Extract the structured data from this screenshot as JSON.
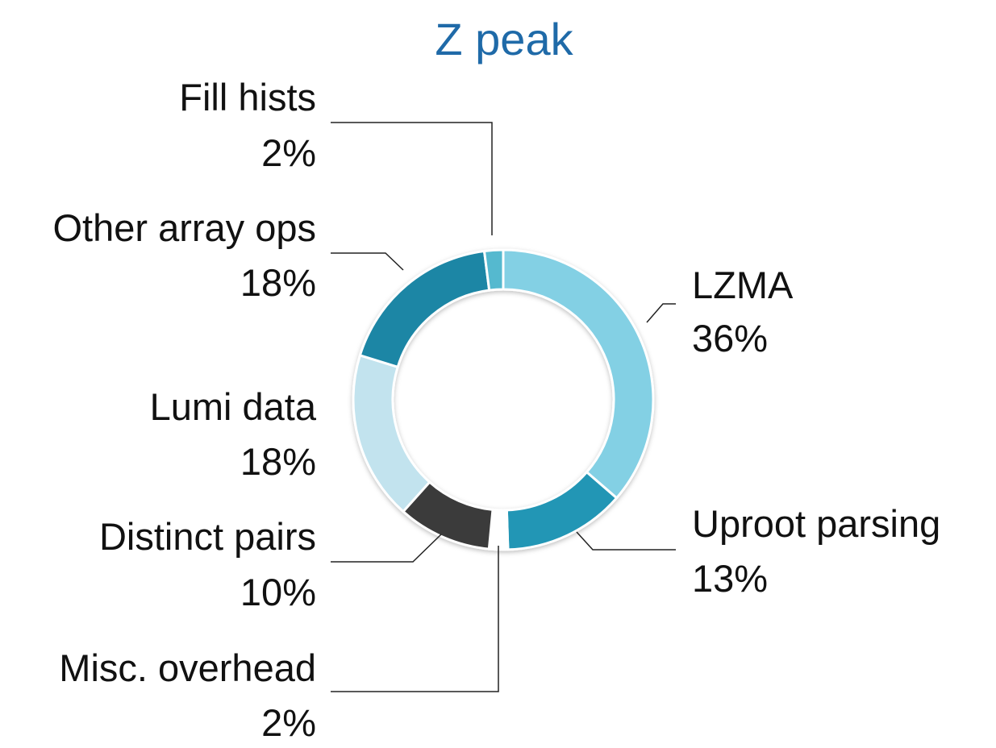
{
  "chart_data": {
    "type": "pie",
    "variant": "donut",
    "title": "Z peak",
    "title_color": "#1f6aa8",
    "start_angle_deg": 0,
    "direction": "clockwise",
    "slices": [
      {
        "label": "LZMA",
        "percent_label": "36%",
        "value": 36,
        "color": "#83d0e4"
      },
      {
        "label": "Uproot parsing",
        "percent_label": "13%",
        "value": 13,
        "color": "#2296b5"
      },
      {
        "label": "Misc. overhead",
        "percent_label": "2%",
        "value": 2,
        "color": "#ffffff"
      },
      {
        "label": "Distinct pairs",
        "percent_label": "10%",
        "value": 10,
        "color": "#3a3a3a"
      },
      {
        "label": "Lumi data",
        "percent_label": "18%",
        "value": 18,
        "color": "#c2e3ee"
      },
      {
        "label": "Other array ops",
        "percent_label": "18%",
        "value": 18,
        "color": "#1e86a5"
      },
      {
        "label": "Fill hists",
        "percent_label": "2%",
        "value": 2,
        "color": "#55b9cf"
      }
    ]
  }
}
